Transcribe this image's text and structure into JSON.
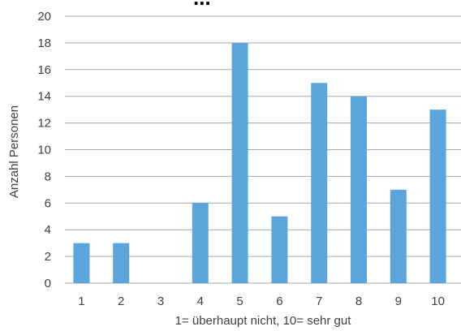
{
  "chart_data": {
    "type": "bar",
    "title_partial": "...",
    "categories": [
      "1",
      "2",
      "3",
      "4",
      "5",
      "6",
      "7",
      "8",
      "9",
      "10"
    ],
    "values": [
      3,
      3,
      0,
      6,
      18,
      5,
      15,
      14,
      7,
      13
    ],
    "xlabel": "1= überhaupt nicht, 10= sehr gut",
    "ylabel": "Anzahl Personen",
    "ylim": [
      0,
      20
    ],
    "yticks": [
      0,
      2,
      4,
      6,
      8,
      10,
      12,
      14,
      16,
      18,
      20
    ],
    "grid": true,
    "legend": "none",
    "bar_color": "#5aa5dc"
  }
}
